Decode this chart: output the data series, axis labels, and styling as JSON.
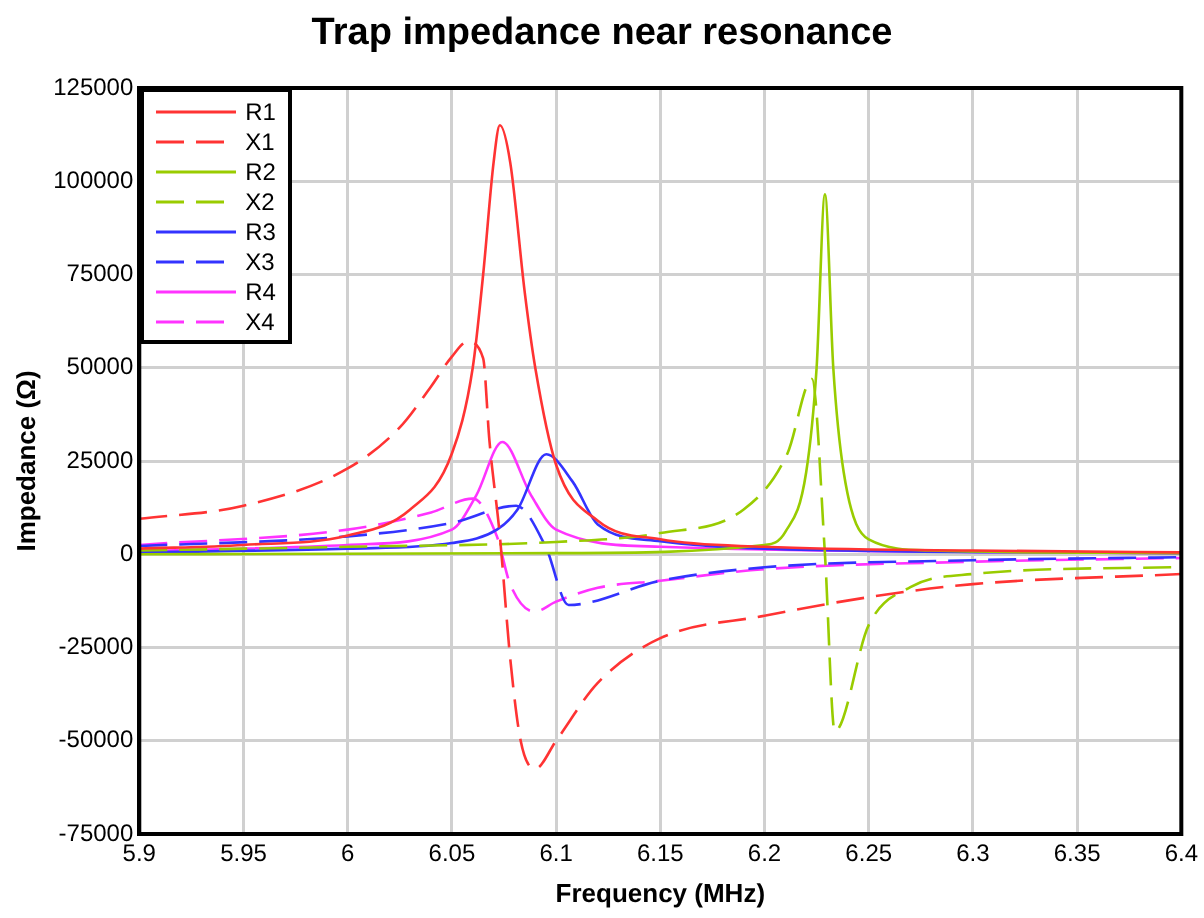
{
  "chart_data": {
    "type": "line",
    "title": "Trap impedance near resonance",
    "xlabel": "Frequency (MHz)",
    "ylabel": "Impedance (Ω)",
    "xlim": [
      5.9,
      6.4
    ],
    "xticks": [
      5.9,
      5.95,
      6,
      6.05,
      6.1,
      6.15,
      6.2,
      6.25,
      6.3,
      6.35,
      6.4
    ],
    "ylim": [
      -75000,
      125000
    ],
    "yticks": [
      -75000,
      -50000,
      -25000,
      0,
      25000,
      50000,
      75000,
      100000,
      125000
    ],
    "grid": true,
    "legend": "top left",
    "marker": "none",
    "series": [
      {
        "name": "R1",
        "color": "#ff3333",
        "line_style": "solid",
        "x": [
          5.9,
          5.95,
          6.0,
          6.03,
          6.05,
          6.06,
          6.065,
          6.07,
          6.073,
          6.078,
          6.085,
          6.09,
          6.1,
          6.12,
          6.15,
          6.2,
          6.3,
          6.4
        ],
        "values": [
          1500,
          2500,
          5000,
          12000,
          27000,
          50000,
          75000,
          105000,
          115000,
          105000,
          70000,
          50000,
          24000,
          9000,
          4000,
          2000,
          1000,
          500
        ]
      },
      {
        "name": "X1",
        "color": "#ff3333",
        "line_style": "dashed",
        "x": [
          5.9,
          5.95,
          6.0,
          6.025,
          6.04,
          6.05,
          6.0575,
          6.065,
          6.068,
          6.073,
          6.078,
          6.083,
          6.09,
          6.1,
          6.12,
          6.15,
          6.2,
          6.25,
          6.3,
          6.4
        ],
        "values": [
          9500,
          13000,
          23000,
          34000,
          45000,
          53000,
          57000,
          52500,
          30500,
          5000,
          -28000,
          -50000,
          -57500,
          -50000,
          -34500,
          -22500,
          -16500,
          -11500,
          -8000,
          -5300
        ]
      },
      {
        "name": "R2",
        "color": "#99cc00",
        "line_style": "solid",
        "x": [
          5.9,
          6.1,
          6.2,
          6.21,
          6.22,
          6.225,
          6.229,
          6.233,
          6.238,
          6.25,
          6.28,
          6.4
        ],
        "values": [
          0,
          300,
          2500,
          6000,
          22000,
          50000,
          96500,
          50000,
          22000,
          4000,
          1000,
          300
        ]
      },
      {
        "name": "X2",
        "color": "#99cc00",
        "line_style": "dashed",
        "x": [
          5.9,
          6.0,
          6.1,
          6.15,
          6.19,
          6.211,
          6.2228,
          6.229,
          6.2337,
          6.25,
          6.27,
          6.3,
          6.4
        ],
        "values": [
          1000,
          2000,
          3300,
          5700,
          12000,
          27000,
          47000,
          0,
          -47500,
          -19000,
          -8800,
          -5300,
          -3400
        ]
      },
      {
        "name": "R3",
        "color": "#3333ff",
        "line_style": "solid",
        "x": [
          5.9,
          6.0,
          6.05,
          6.0716,
          6.0815,
          6.0953,
          6.108,
          6.12,
          6.15,
          6.2,
          6.4
        ],
        "values": [
          500,
          1500,
          3000,
          6600,
          12000,
          26800,
          19400,
          8000,
          3500,
          1500,
          300
        ]
      },
      {
        "name": "X3",
        "color": "#3333ff",
        "line_style": "dashed",
        "x": [
          5.9,
          6.0,
          6.05,
          6.0808,
          6.095,
          6.106,
          6.15,
          6.2,
          6.3,
          6.4
        ],
        "values": [
          2200,
          4800,
          8400,
          13000,
          2000,
          -13600,
          -7100,
          -3500,
          -1600,
          -800
        ]
      },
      {
        "name": "R4",
        "color": "#ff33ff",
        "line_style": "solid",
        "x": [
          5.9,
          6.0,
          6.05,
          6.0617,
          6.0742,
          6.088,
          6.1,
          6.15,
          6.4
        ],
        "values": [
          800,
          2500,
          6600,
          15800,
          30100,
          15800,
          6600,
          2000,
          300
        ]
      },
      {
        "name": "X4",
        "color": "#ff33ff",
        "line_style": "dashed",
        "x": [
          5.9,
          6.0,
          6.04,
          6.06,
          6.0716,
          6.078,
          6.0897,
          6.1,
          6.12,
          6.15,
          6.2,
          6.3,
          6.4
        ],
        "values": [
          2500,
          6600,
          11200,
          14900,
          4800,
          -8100,
          -15400,
          -12700,
          -9000,
          -7100,
          -4000,
          -2000,
          -1000
        ]
      }
    ]
  }
}
